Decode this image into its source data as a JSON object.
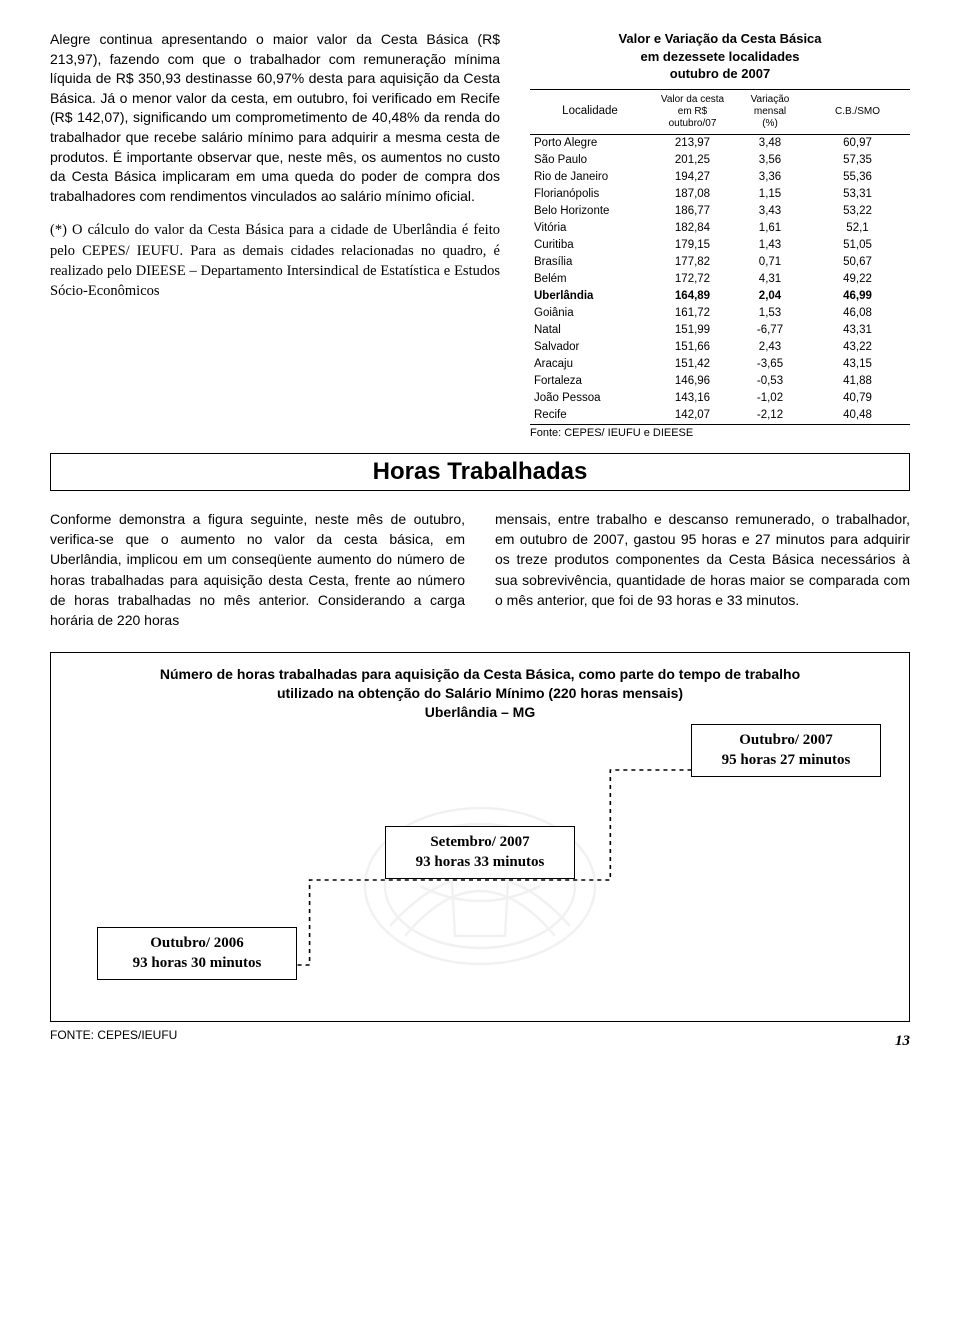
{
  "top_para_1": "Alegre continua apresentando o maior valor da Cesta Básica (R$ 213,97), fazendo com que o trabalhador com remuneração mínima líquida de R$ 350,93 destinasse 60,97% desta para aquisição da Cesta Básica. Já o menor valor da cesta, em outubro, foi verificado em Recife (R$ 142,07), significando um comprometimento de 40,48% da renda do trabalhador que recebe salário mínimo para adquirir a mesma cesta de produtos. É importante observar que, neste mês, os aumentos no custo da Cesta Básica implicaram em uma queda do poder de compra dos trabalhadores com rendimentos vinculados ao salário mínimo oficial.",
  "top_para_2": "(*) O cálculo do valor da Cesta Básica para a cidade de Uberlândia é feito pelo CEPES/ IEUFU. Para as demais cidades relacionadas no quadro, é realizado pelo DIEESE – Departamento Intersindical de Estatística e Estudos Sócio-Econômicos",
  "table_title_l1": "Valor e Variação da Cesta Básica",
  "table_title_l2": "em dezessete localidades",
  "table_title_l3": "outubro de 2007",
  "th_loc": "Localidade",
  "th_val_l1": "Valor da cesta",
  "th_val_l2": "em R$",
  "th_val_l3": "outubro/07",
  "th_var_l1": "Variação",
  "th_var_l2": "mensal",
  "th_var_l3": "(%)",
  "th_cb": "C.B./SMO",
  "rows": [
    {
      "loc": "Porto Alegre",
      "val": "213,97",
      "var": "3,48",
      "cb": "60,97",
      "bold": false
    },
    {
      "loc": "São Paulo",
      "val": "201,25",
      "var": "3,56",
      "cb": "57,35",
      "bold": false
    },
    {
      "loc": "Rio de Janeiro",
      "val": "194,27",
      "var": "3,36",
      "cb": "55,36",
      "bold": false
    },
    {
      "loc": "Florianópolis",
      "val": "187,08",
      "var": "1,15",
      "cb": "53,31",
      "bold": false
    },
    {
      "loc": "Belo Horizonte",
      "val": "186,77",
      "var": "3,43",
      "cb": "53,22",
      "bold": false
    },
    {
      "loc": "Vitória",
      "val": "182,84",
      "var": "1,61",
      "cb": "52,1",
      "bold": false
    },
    {
      "loc": "Curitiba",
      "val": "179,15",
      "var": "1,43",
      "cb": "51,05",
      "bold": false
    },
    {
      "loc": "Brasília",
      "val": "177,82",
      "var": "0,71",
      "cb": "50,67",
      "bold": false
    },
    {
      "loc": "Belém",
      "val": "172,72",
      "var": "4,31",
      "cb": "49,22",
      "bold": false
    },
    {
      "loc": "Uberlândia",
      "val": "164,89",
      "var": "2,04",
      "cb": "46,99",
      "bold": true
    },
    {
      "loc": "Goiânia",
      "val": "161,72",
      "var": "1,53",
      "cb": "46,08",
      "bold": false
    },
    {
      "loc": "Natal",
      "val": "151,99",
      "var": "-6,77",
      "cb": "43,31",
      "bold": false
    },
    {
      "loc": "Salvador",
      "val": "151,66",
      "var": "2,43",
      "cb": "43,22",
      "bold": false
    },
    {
      "loc": "Aracaju",
      "val": "151,42",
      "var": "-3,65",
      "cb": "43,15",
      "bold": false
    },
    {
      "loc": "Fortaleza",
      "val": "146,96",
      "var": "-0,53",
      "cb": "41,88",
      "bold": false
    },
    {
      "loc": "João Pessoa",
      "val": "143,16",
      "var": "-1,02",
      "cb": "40,79",
      "bold": false
    },
    {
      "loc": "Recife",
      "val": "142,07",
      "var": "-2,12",
      "cb": "40,48",
      "bold": false
    }
  ],
  "table_src": "Fonte: CEPES/ IEUFU e DIEESE",
  "section_heading": "Horas Trabalhadas",
  "mid_left": "Conforme demonstra a figura seguinte, neste mês de outubro, verifica-se que o aumento no valor da cesta básica, em Uberlândia, implicou em um conseqüente aumento do número de horas trabalhadas para aquisição desta Cesta, frente ao número de horas trabalhadas no mês anterior. Considerando a carga horária de 220 horas",
  "mid_right": "mensais, entre trabalho e descanso remunerado, o trabalhador, em outubro de 2007, gastou 95 horas e 27 minutos para adquirir os treze produtos componentes da Cesta Básica necessários à sua sobrevivência, quantidade de horas maior se comparada com o mês anterior, que foi de 93 horas e 33 minutos.",
  "chart_title_l1": "Número de horas trabalhadas para aquisição da Cesta Básica, como parte do tempo de trabalho",
  "chart_title_l2": "utilizado na obtenção do Salário Mínimo (220 horas mensais)",
  "chart_title_l3": "Uberlândia – MG",
  "step_new_lbl": "Outubro/ 2007",
  "step_new_val": "95 horas 27 minutos",
  "step_mid_lbl": "Setembro/ 2007",
  "step_mid_val": "93 horas 33 minutos",
  "step_old_lbl": "Outubro/ 2006",
  "step_old_val": "93 horas 30 minutos",
  "chart_src": "FONTE: CEPES/IEUFU",
  "page_number": "13",
  "colors": {
    "text": "#000000",
    "border": "#000000",
    "watermark": "#c9c9c9",
    "dashed": "#000000"
  }
}
